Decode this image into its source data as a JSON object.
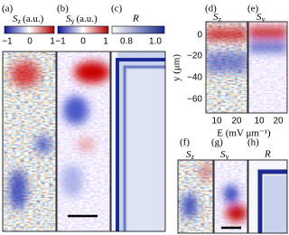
{
  "panel_labels": [
    "(a)",
    "(b)",
    "(c)",
    "(d)",
    "(e)",
    "(f)",
    "(g)",
    "(h)"
  ],
  "colorbars": [
    {
      "title": {
        "symbol": "S",
        "sub": "z",
        "unit": "(a.u.)"
      },
      "ticks": [
        "−1",
        "0",
        "1"
      ]
    },
    {
      "title": {
        "symbol": "S",
        "sub": "y",
        "unit": "(a.u.)"
      },
      "ticks": [
        "−1",
        "0",
        "1"
      ]
    },
    {
      "title": {
        "symbol": "R"
      },
      "ticks": [
        "0.8",
        "1.0"
      ]
    }
  ],
  "small_titles": [
    {
      "symbol": "S",
      "sub": "z"
    },
    {
      "symbol": "S",
      "sub": "y"
    },
    {
      "symbol": "S",
      "sub": "z"
    },
    {
      "symbol": "S",
      "sub": "y"
    },
    {
      "symbol": "R"
    }
  ],
  "y_axis": {
    "label": "y (μm)",
    "ticks": [
      "0",
      "−20",
      "−40",
      "−60"
    ]
  },
  "x_axis": {
    "label": "E (mV μm⁻¹)",
    "ticks": [
      "10",
      "20",
      "10",
      "20"
    ]
  }
}
